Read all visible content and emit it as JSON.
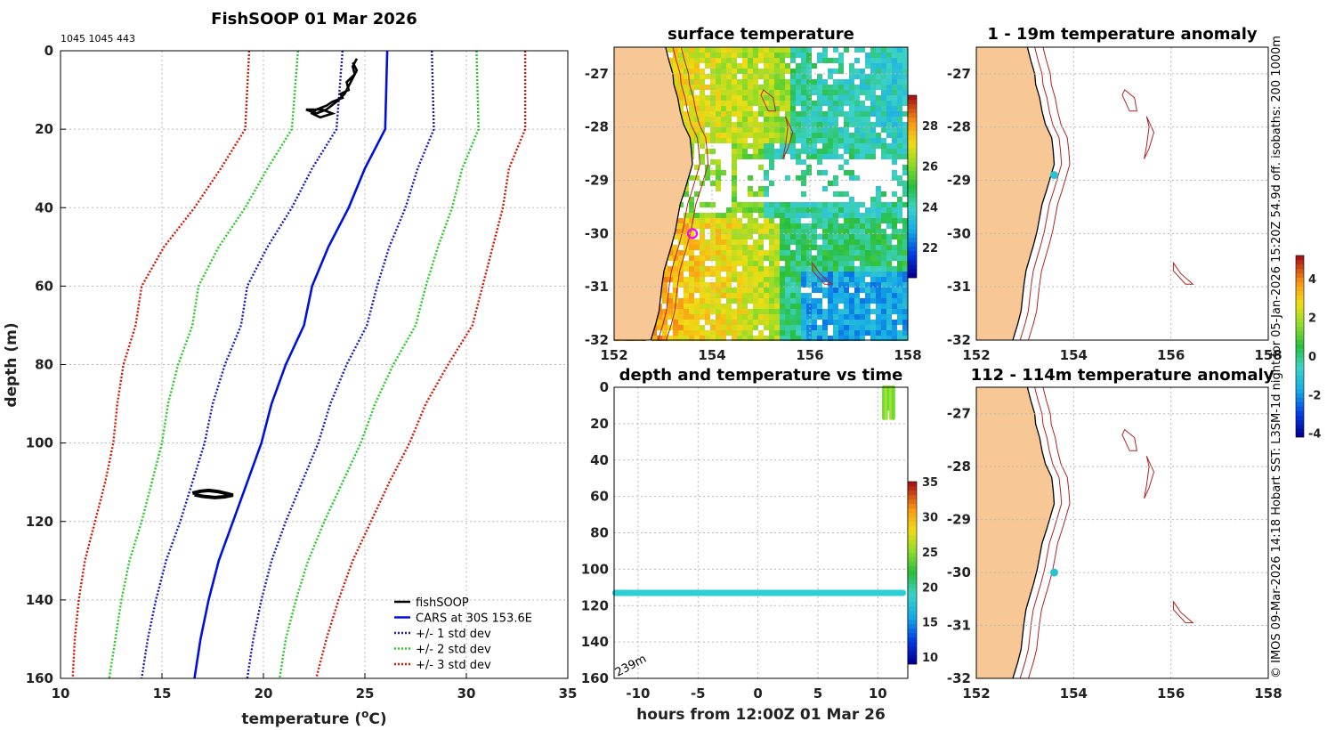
{
  "colors": {
    "land": "#f7c796",
    "coast": "#000000",
    "isobath": "#b22222",
    "cars": "#0010dd",
    "std1": "#1515cc",
    "std2": "#22cc22",
    "std3": "#dd1100",
    "fishsoop": "#000000",
    "marker": "#ff00ff",
    "dot": "#27c4cf",
    "band": "#2ccfd6"
  },
  "header": {
    "code": "1045 1045 443"
  },
  "credit": "© IMOS 09-Mar-2026 14:18 Hobart SST: L3SM-1d night for 05-Jan-2026 15:20Z 54.9d off. isobaths: 200  1000m",
  "chart_data": [
    {
      "type": "line",
      "title": "FishSOOP 01 Mar 2026",
      "xlabel_pre": "temperature (",
      "xlabel_sup": "o",
      "xlabel_post": "C)",
      "ylabel": "depth (m)",
      "xlim": [
        10,
        35
      ],
      "ylim": [
        0,
        160
      ],
      "xticks": [
        "10",
        "15",
        "20",
        "25",
        "30",
        "35"
      ],
      "yticks": [
        "0",
        "20",
        "40",
        "60",
        "80",
        "100",
        "120",
        "140",
        "160"
      ],
      "legend": [
        "fishSOOP",
        "CARS at 30S 153.6E",
        "+/- 1 std dev",
        "+/- 2 std dev",
        "+/- 3 std dev"
      ],
      "cars": {
        "depth": [
          0,
          20,
          30,
          40,
          50,
          60,
          70,
          80,
          90,
          100,
          110,
          120,
          130,
          140,
          150,
          160
        ],
        "temp": [
          26.1,
          26,
          25,
          24.2,
          23.2,
          22.4,
          22,
          21.1,
          20.4,
          19.9,
          19.2,
          18.5,
          17.8,
          17.3,
          16.9,
          16.6
        ]
      },
      "std1": [
        2.2,
        2.4,
        2.6,
        2.8,
        3.0,
        3.2,
        3.1,
        3.0,
        2.9,
        2.8,
        2.7,
        2.6,
        2.6,
        2.6,
        2.6,
        2.6
      ],
      "std2": [
        4.4,
        4.6,
        4.8,
        5.1,
        5.4,
        5.6,
        5.5,
        5.3,
        5.1,
        4.9,
        4.7,
        4.5,
        4.4,
        4.3,
        4.2,
        4.2
      ],
      "std3": [
        6.8,
        6.9,
        7.1,
        7.6,
        8.1,
        8.4,
        8.3,
        8.0,
        7.6,
        7.3,
        7.0,
        6.8,
        6.6,
        6.4,
        6.2,
        6.0
      ],
      "fishsoop": {
        "temp": [
          24.6,
          24.4,
          24.5,
          24.1,
          24.2,
          23.8,
          23.9,
          23.4,
          23.1,
          22.6,
          22.4,
          22.8,
          23.4,
          22.9,
          22.1,
          22.6,
          23.1,
          23.6,
          24.0,
          24.3,
          24.6,
          24.4
        ],
        "depth": [
          2,
          4,
          6,
          8,
          10,
          11,
          12,
          13,
          14,
          15,
          16,
          17,
          16,
          15,
          15,
          16,
          15,
          13,
          11,
          8,
          5,
          3
        ]
      },
      "fishsoop_deep": {
        "temp": [
          16.5,
          16.9,
          17.3,
          17.8,
          18.2,
          18.5,
          18.1,
          17.6,
          17.0,
          16.6
        ],
        "depth": [
          112.8,
          112.3,
          112.1,
          112.4,
          112.9,
          113.3,
          113.7,
          113.9,
          113.6,
          113.2
        ]
      }
    },
    {
      "type": "heatmap",
      "title": "surface temperature",
      "xlim": [
        152,
        158
      ],
      "ylim": [
        -32,
        -26.5
      ],
      "xticks": [
        "152",
        "154",
        "156",
        "158"
      ],
      "yticks": [
        "-27",
        "-28",
        "-29",
        "-30",
        "-31",
        "-32"
      ],
      "colorbar": {
        "min": 20.5,
        "max": 29.5,
        "ticks": [
          "22",
          "24",
          "26",
          "28"
        ]
      },
      "marker": {
        "lon": 153.6,
        "lat": -30
      }
    },
    {
      "type": "scatter",
      "title": "depth and temperature vs time",
      "xlabel": "hours from 12:00Z 01 Mar 26",
      "xlim": [
        -12,
        12.5
      ],
      "ylim": [
        0,
        160
      ],
      "xticks": [
        "-10",
        "-5",
        "0",
        "5",
        "10"
      ],
      "yticks": [
        "0",
        "20",
        "40",
        "60",
        "80",
        "100",
        "120",
        "140",
        "160"
      ],
      "colorbar": {
        "min": 9,
        "max": 35,
        "ticks": [
          "10",
          "15",
          "20",
          "25",
          "30",
          "35"
        ]
      },
      "annotation": "239m",
      "series": {
        "band_depth": 113,
        "band_range": [
          -11.9,
          12.1
        ],
        "surface_x": [
          10.5,
          10.7,
          10.9,
          11.1,
          11.3
        ],
        "surface_depth_max": 17
      }
    },
    {
      "type": "map",
      "title": "1 - 19m temperature anomaly",
      "xlim": [
        152,
        158
      ],
      "ylim": [
        -32,
        -26.5
      ],
      "xticks": [
        "152",
        "154",
        "156",
        "158"
      ],
      "yticks": [
        "-27",
        "-28",
        "-29",
        "-30",
        "-31",
        "-32"
      ],
      "point": {
        "lon": 153.6,
        "lat": -28.9
      }
    },
    {
      "type": "map",
      "title": "112 - 114m temperature anomaly",
      "xlim": [
        152,
        158
      ],
      "ylim": [
        -32,
        -26.5
      ],
      "xticks": [
        "152",
        "154",
        "156",
        "158"
      ],
      "yticks": [
        "-27",
        "-28",
        "-29",
        "-30",
        "-31",
        "-32"
      ],
      "point": {
        "lon": 153.6,
        "lat": -30
      }
    },
    {
      "type": "colorbar",
      "min": -4.2,
      "max": 5.2,
      "ticks": [
        "4",
        "2",
        "0",
        "-2",
        "-4"
      ]
    }
  ]
}
